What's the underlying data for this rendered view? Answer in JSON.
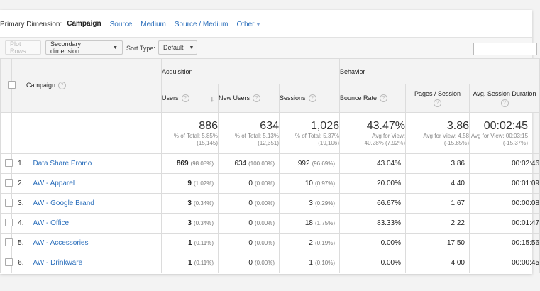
{
  "dimension_bar": {
    "label": "Primary Dimension:",
    "active": "Campaign",
    "links": [
      "Source",
      "Medium",
      "Source / Medium",
      "Other"
    ]
  },
  "toolbar": {
    "plot_rows": "Plot Rows",
    "secondary_dimension": "Secondary dimension",
    "sort_type_label": "Sort Type:",
    "sort_type_value": "Default"
  },
  "table": {
    "campaign_header": "Campaign",
    "groups": {
      "acquisition": "Acquisition",
      "behavior": "Behavior"
    },
    "columns": {
      "users": "Users",
      "new_users": "New Users",
      "sessions": "Sessions",
      "bounce_rate": "Bounce Rate",
      "pages_session": "Pages / Session",
      "avg_session_duration": "Avg. Session Duration"
    },
    "totals": {
      "users": {
        "value": "886",
        "line1": "% of Total: 5.85%",
        "line2": "(15,145)"
      },
      "new_users": {
        "value": "634",
        "line1": "% of Total: 5.13%",
        "line2": "(12,351)"
      },
      "sessions": {
        "value": "1,026",
        "line1": "% of Total: 5.37%",
        "line2": "(19,106)"
      },
      "bounce_rate": {
        "value": "43.47%",
        "line1": "Avg for View:",
        "line2": "40.28% (7.92%)"
      },
      "pages_session": {
        "value": "3.86",
        "line1": "Avg for View: 4.58",
        "line2": "(-15.85%)"
      },
      "avg_session_duration": {
        "value": "00:02:45",
        "line1": "Avg for View: 00:03:15",
        "line2": "(-15.37%)"
      }
    },
    "rows": [
      {
        "index": "1.",
        "campaign": "Data Share Promo",
        "users": "869",
        "users_pct": "(98.08%)",
        "new_users": "634",
        "new_users_pct": "(100.00%)",
        "sessions": "992",
        "sessions_pct": "(96.69%)",
        "bounce_rate": "43.04%",
        "pages_session": "3.86",
        "avg_duration": "00:02:46"
      },
      {
        "index": "2.",
        "campaign": "AW - Apparel",
        "users": "9",
        "users_pct": "(1.02%)",
        "new_users": "0",
        "new_users_pct": "(0.00%)",
        "sessions": "10",
        "sessions_pct": "(0.97%)",
        "bounce_rate": "20.00%",
        "pages_session": "4.40",
        "avg_duration": "00:01:09"
      },
      {
        "index": "3.",
        "campaign": "AW - Google Brand",
        "users": "3",
        "users_pct": "(0.34%)",
        "new_users": "0",
        "new_users_pct": "(0.00%)",
        "sessions": "3",
        "sessions_pct": "(0.29%)",
        "bounce_rate": "66.67%",
        "pages_session": "1.67",
        "avg_duration": "00:00:08"
      },
      {
        "index": "4.",
        "campaign": "AW - Office",
        "users": "3",
        "users_pct": "(0.34%)",
        "new_users": "0",
        "new_users_pct": "(0.00%)",
        "sessions": "18",
        "sessions_pct": "(1.75%)",
        "bounce_rate": "83.33%",
        "pages_session": "2.22",
        "avg_duration": "00:01:47"
      },
      {
        "index": "5.",
        "campaign": "AW - Accessories",
        "users": "1",
        "users_pct": "(0.11%)",
        "new_users": "0",
        "new_users_pct": "(0.00%)",
        "sessions": "2",
        "sessions_pct": "(0.19%)",
        "bounce_rate": "0.00%",
        "pages_session": "17.50",
        "avg_duration": "00:15:56"
      },
      {
        "index": "6.",
        "campaign": "AW - Drinkware",
        "users": "1",
        "users_pct": "(0.11%)",
        "new_users": "0",
        "new_users_pct": "(0.00%)",
        "sessions": "1",
        "sessions_pct": "(0.10%)",
        "bounce_rate": "0.00%",
        "pages_session": "4.00",
        "avg_duration": "00:00:45"
      }
    ]
  },
  "colors": {
    "link": "#2a6ebb",
    "header_bg": "#f3f3f3",
    "border": "#dcdcdc"
  },
  "icons": {
    "help": "help-circle-icon",
    "sort": "sort-down-arrow-icon",
    "dropdown": "caret-down-icon"
  }
}
